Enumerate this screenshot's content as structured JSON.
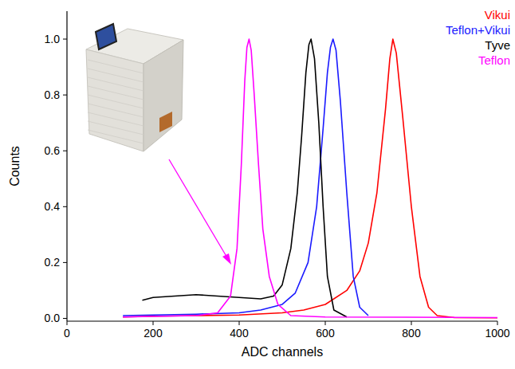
{
  "chart_data": {
    "type": "line",
    "x_label": "ADC channels",
    "y_label": "Counts",
    "xlim": [
      0,
      1000
    ],
    "ylim": [
      -0.01,
      1.1
    ],
    "xticks": [
      0,
      200,
      400,
      600,
      800,
      1000
    ],
    "yticks": [
      {
        "value": 0,
        "label": "0.0"
      },
      0.2,
      0.4,
      0.6,
      0.8,
      {
        "value": 1,
        "label": "1.0"
      }
    ],
    "legend": "top-right",
    "grid": false,
    "series": [
      {
        "name": "Vikui",
        "color": "#ff0000",
        "x": [
          130,
          200,
          300,
          400,
          500,
          550,
          600,
          650,
          680,
          700,
          720,
          740,
          750,
          757,
          765,
          780,
          800,
          820,
          840,
          860,
          900,
          1000
        ],
        "values": [
          0.005,
          0.008,
          0.01,
          0.012,
          0.02,
          0.03,
          0.05,
          0.1,
          0.17,
          0.27,
          0.45,
          0.75,
          0.93,
          1.0,
          0.95,
          0.72,
          0.4,
          0.15,
          0.04,
          0.01,
          0.003,
          0.002
        ]
      },
      {
        "name": "Teflon+Vikui",
        "color": "#1a1aff",
        "x": [
          130,
          200,
          300,
          400,
          450,
          500,
          530,
          560,
          580,
          595,
          605,
          612,
          618,
          625,
          635,
          650,
          665,
          680,
          700
        ],
        "values": [
          0.01,
          0.012,
          0.015,
          0.02,
          0.03,
          0.05,
          0.09,
          0.2,
          0.4,
          0.68,
          0.88,
          0.97,
          1.0,
          0.96,
          0.78,
          0.45,
          0.15,
          0.04,
          0.01
        ]
      },
      {
        "name": "Tyve",
        "color": "#000000",
        "x": [
          175,
          200,
          250,
          300,
          350,
          400,
          450,
          480,
          500,
          520,
          535,
          545,
          555,
          562,
          567,
          575,
          585,
          595,
          605,
          620,
          650
        ],
        "values": [
          0.065,
          0.075,
          0.08,
          0.085,
          0.08,
          0.075,
          0.07,
          0.08,
          0.12,
          0.25,
          0.45,
          0.65,
          0.88,
          0.98,
          1.0,
          0.93,
          0.7,
          0.4,
          0.15,
          0.03,
          0.005
        ]
      },
      {
        "name": "Teflon",
        "color": "#ff00ff",
        "x": [
          130,
          200,
          300,
          350,
          380,
          395,
          405,
          413,
          418,
          423,
          428,
          435,
          445,
          455,
          470,
          490,
          520,
          600,
          1000
        ],
        "values": [
          0.005,
          0.007,
          0.01,
          0.02,
          0.08,
          0.25,
          0.55,
          0.85,
          0.97,
          1.0,
          0.96,
          0.8,
          0.55,
          0.32,
          0.15,
          0.05,
          0.01,
          0.005,
          0.003
        ]
      }
    ]
  }
}
